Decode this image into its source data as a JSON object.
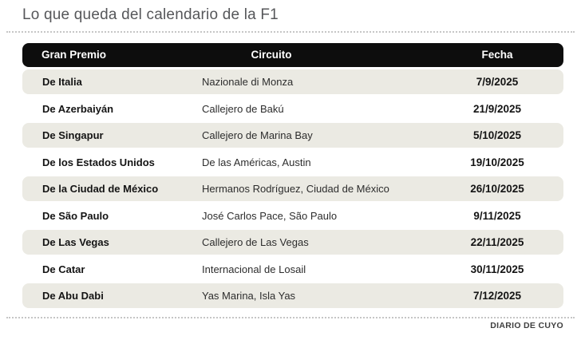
{
  "page": {
    "title": "Lo que queda del calendario de la F1",
    "source_credit": "DIARIO DE CUYO"
  },
  "chart_data": {
    "type": "table",
    "title": "Lo que queda del calendario de la F1",
    "columns": [
      "Gran Premio",
      "Circuito",
      "Fecha"
    ],
    "rows": [
      {
        "gran_premio": "De Italia",
        "circuito": "Nazionale di Monza",
        "fecha": "7/9/2025"
      },
      {
        "gran_premio": "De Azerbaiyán",
        "circuito": "Callejero de Bakú",
        "fecha": "21/9/2025"
      },
      {
        "gran_premio": "De Singapur",
        "circuito": "Callejero de Marina Bay",
        "fecha": "5/10/2025"
      },
      {
        "gran_premio": "De los Estados Unidos",
        "circuito": "De las Américas, Austin",
        "fecha": "19/10/2025"
      },
      {
        "gran_premio": "De la Ciudad de México",
        "circuito": "Hermanos Rodríguez, Ciudad de México",
        "fecha": "26/10/2025"
      },
      {
        "gran_premio": "De São Paulo",
        "circuito": "José Carlos Pace, São Paulo",
        "fecha": "9/11/2025"
      },
      {
        "gran_premio": "De Las Vegas",
        "circuito": "Callejero de Las Vegas",
        "fecha": "22/11/2025"
      },
      {
        "gran_premio": "De Catar",
        "circuito": "Internacional de Losail",
        "fecha": "30/11/2025"
      },
      {
        "gran_premio": "De Abu Dabi",
        "circuito": "Yas Marina, Isla Yas",
        "fecha": "7/12/2025"
      }
    ],
    "layout": {
      "legend": "none",
      "grid": "off",
      "shaded_rows": "odd rows (1st, 3rd, 5th, 7th, 9th)",
      "header_alignment": [
        "left",
        "center",
        "center"
      ]
    }
  },
  "colors": {
    "header_bg": "#0d0d0d",
    "header_text": "#ffffff",
    "shaded_row_bg": "#ebeae3",
    "title_text": "#56575a",
    "gp_text": "#141414",
    "circuit_text": "#2d2d2d",
    "date_text": "#141414",
    "dotted_rule": "#c6c6c6",
    "source_text": "#3f3f3f"
  }
}
